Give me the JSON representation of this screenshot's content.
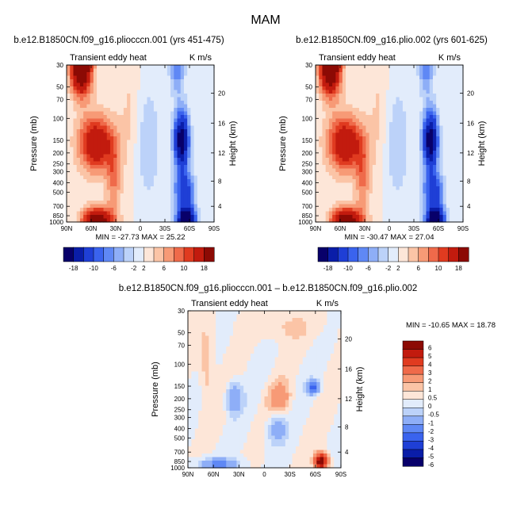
{
  "figure_title": "MAM",
  "chart_data": [
    {
      "type": "heatmap",
      "title": "b.e12.B1850CN.f09_g16.pliocccn.001 (yrs 451-475)",
      "variable": "Transient eddy heat",
      "units": "K m/s",
      "xlabel": "",
      "ylabel": "Pressure (mb)",
      "y2label": "Height (km)",
      "x_ticks": [
        "90N",
        "60N",
        "30N",
        "0",
        "30S",
        "60S",
        "90S"
      ],
      "y_ticks": [
        "30",
        "50",
        "70",
        "100",
        "150",
        "200",
        "250",
        "300",
        "400",
        "500",
        "700",
        "850",
        "1000"
      ],
      "y2_ticks": [
        "20",
        "16",
        "12",
        "8",
        "4"
      ],
      "stats": "MIN = -27.73   MAX = 25.22",
      "min": -27.73,
      "max": 25.22,
      "colorbar_labels": [
        "-18",
        "-10",
        "-6",
        "-2",
        "2",
        "6",
        "10",
        "18"
      ],
      "levels": [
        -18,
        -14,
        -10,
        -8,
        -6,
        -4,
        -2,
        0,
        2,
        4,
        6,
        8,
        10,
        14,
        18
      ]
    },
    {
      "type": "heatmap",
      "title": "b.e12.B1850CN.f09_g16.plio.002 (yrs 601-625)",
      "variable": "Transient eddy heat",
      "units": "K m/s",
      "xlabel": "",
      "ylabel": "Pressure (mb)",
      "y2label": "Height (km)",
      "x_ticks": [
        "90N",
        "60N",
        "30N",
        "0",
        "30S",
        "60S",
        "90S"
      ],
      "y_ticks": [
        "30",
        "50",
        "70",
        "100",
        "150",
        "200",
        "250",
        "300",
        "400",
        "500",
        "700",
        "850",
        "1000"
      ],
      "y2_ticks": [
        "20",
        "16",
        "12",
        "8",
        "4"
      ],
      "stats": "MIN = -30.47   MAX = 27.04",
      "min": -30.47,
      "max": 27.04,
      "colorbar_labels": [
        "-18",
        "-10",
        "-6",
        "-2",
        "2",
        "6",
        "10",
        "18"
      ],
      "levels": [
        -18,
        -14,
        -10,
        -8,
        -6,
        -4,
        -2,
        0,
        2,
        4,
        6,
        8,
        10,
        14,
        18
      ]
    },
    {
      "type": "heatmap",
      "title": "b.e12.B1850CN.f09_g16.pliocccn.001 – b.e12.B1850CN.f09_g16.plio.002",
      "variable": "Transient eddy heat",
      "units": "K m/s",
      "xlabel": "",
      "ylabel": "Pressure (mb)",
      "y2label": "Height (km)",
      "x_ticks": [
        "90N",
        "60N",
        "30N",
        "0",
        "30S",
        "60S",
        "90S"
      ],
      "y_ticks": [
        "30",
        "50",
        "70",
        "100",
        "150",
        "200",
        "250",
        "300",
        "400",
        "500",
        "700",
        "850",
        "1000"
      ],
      "y2_ticks": [
        "20",
        "16",
        "12",
        "8",
        "4"
      ],
      "stats": "MIN = -10.65   MAX =  18.78",
      "min": -10.65,
      "max": 18.78,
      "colorbar_labels": [
        "6",
        "5",
        "4",
        "3",
        "2",
        "1",
        "0.5",
        "0",
        "-0.5",
        "-1",
        "-2",
        "-3",
        "-4",
        "-5",
        "-6"
      ],
      "levels": [
        -6,
        -5,
        -4,
        -3,
        -2,
        -1,
        -0.5,
        0,
        0.5,
        1,
        2,
        3,
        4,
        5,
        6
      ]
    }
  ],
  "palette": [
    "#08006a",
    "#0a1da8",
    "#1f3fd6",
    "#3a63ee",
    "#5f88f5",
    "#8eaef7",
    "#bcd2f9",
    "#e2ecfb",
    "#fde6d8",
    "#fbc4a6",
    "#f79a76",
    "#ef6a4a",
    "#e03b20",
    "#c21b0e",
    "#8c0a04"
  ]
}
